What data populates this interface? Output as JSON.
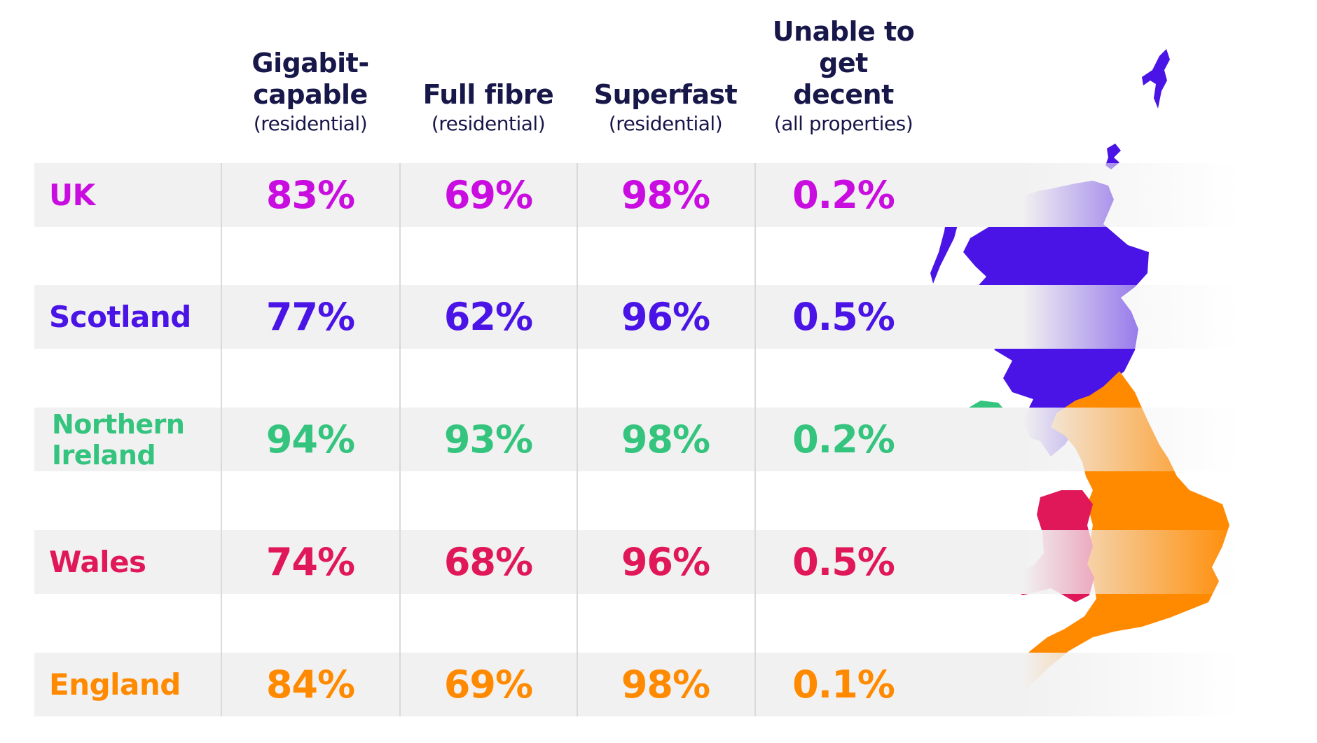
{
  "chart_data": {
    "type": "table",
    "columns": [
      {
        "key": "gigabit",
        "title": "Gigabit-capable",
        "subtitle": "(residential)"
      },
      {
        "key": "fibre",
        "title": "Full fibre",
        "subtitle": "(residential)"
      },
      {
        "key": "superfast",
        "title": "Superfast",
        "subtitle": "(residential)"
      },
      {
        "key": "unable",
        "title": "Unable to get decent",
        "subtitle": "(all properties)"
      }
    ],
    "rows": [
      {
        "name": "UK",
        "color": "#c90ce0",
        "values": [
          "83%",
          "69%",
          "98%",
          "0.2%"
        ]
      },
      {
        "name": "Scotland",
        "color": "#4a14e6",
        "values": [
          "77%",
          "62%",
          "96%",
          "0.5%"
        ]
      },
      {
        "name": "Northern Ireland",
        "color": "#34c47e",
        "values": [
          "94%",
          "93%",
          "98%",
          "0.2%"
        ]
      },
      {
        "name": "Wales",
        "color": "#e0185a",
        "values": [
          "74%",
          "68%",
          "96%",
          "0.5%"
        ]
      },
      {
        "name": "England",
        "color": "#ff8a00",
        "values": [
          "84%",
          "69%",
          "98%",
          "0.1%"
        ]
      }
    ]
  },
  "map": {
    "regions": [
      {
        "name": "scotland",
        "color": "#4a14e6"
      },
      {
        "name": "northern-ireland",
        "color": "#34c47e"
      },
      {
        "name": "wales",
        "color": "#e0185a"
      },
      {
        "name": "england",
        "color": "#ff8a00"
      }
    ]
  }
}
